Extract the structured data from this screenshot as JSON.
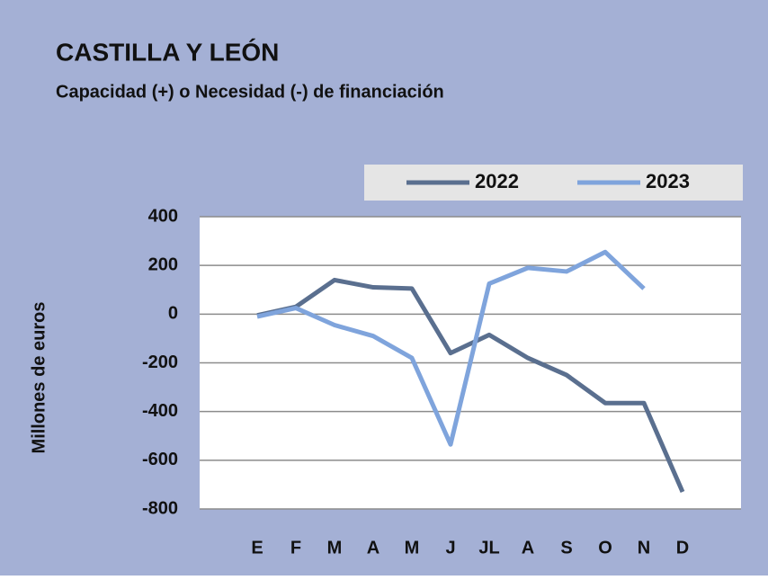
{
  "chart_data": {
    "type": "line",
    "title": "CASTILLA Y LEÓN",
    "subtitle": "Capacidad (+) o Necesidad (-) de financiación",
    "y_label": "Millones de euros",
    "categories": [
      "E",
      "F",
      "M",
      "A",
      "M",
      "J",
      "JL",
      "A",
      "S",
      "O",
      "N",
      "D"
    ],
    "series": [
      {
        "name": "2022",
        "color": "#5a6f8f",
        "values": [
          -5,
          30,
          140,
          110,
          105,
          -160,
          -85,
          -180,
          -250,
          -365,
          -365,
          -730
        ]
      },
      {
        "name": "2023",
        "color": "#7fa4dc",
        "values": [
          -10,
          25,
          -45,
          -90,
          -180,
          -535,
          125,
          190,
          175,
          255,
          105,
          null
        ]
      }
    ],
    "ylim": [
      -800,
      400
    ],
    "yticks": [
      -800,
      -600,
      -400,
      -200,
      0,
      200,
      400
    ],
    "grid": true,
    "legend": "top-right"
  }
}
